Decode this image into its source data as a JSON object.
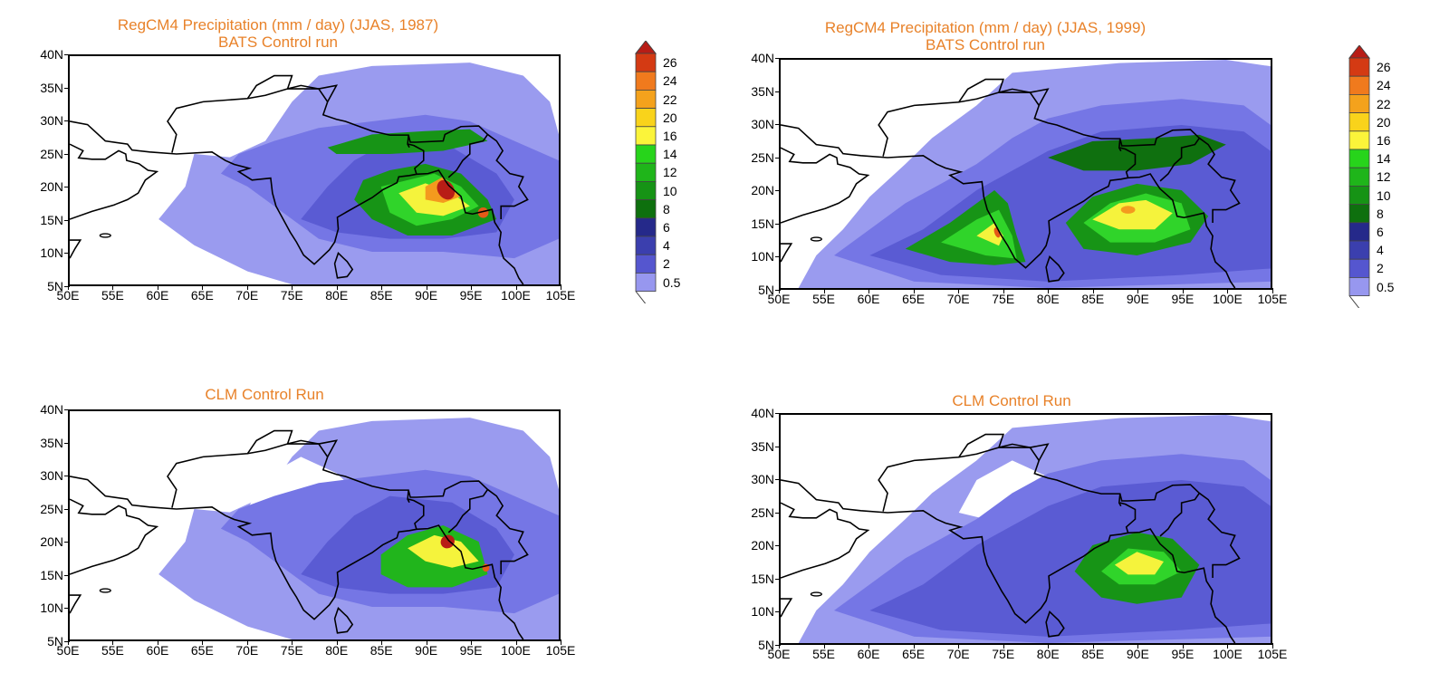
{
  "panels": [
    {
      "id": "p1",
      "title_lines": [
        "RegCM4 Precipitation (mm / day)  (JJAS, 1987)",
        "BATS Control run"
      ]
    },
    {
      "id": "p2",
      "title_lines": [
        "RegCM4 Precipitation (mm / day)  (JJAS, 1999)",
        "BATS Control run"
      ]
    },
    {
      "id": "p3",
      "title_lines": [
        "CLM Control Run"
      ]
    },
    {
      "id": "p4",
      "title_lines": [
        "CLM Control Run"
      ]
    }
  ],
  "axes": {
    "lat_labels": [
      "40N",
      "35N",
      "30N",
      "25N",
      "20N",
      "15N",
      "10N",
      "5N"
    ],
    "lon_labels": [
      "50E",
      "55E",
      "60E",
      "65E",
      "70E",
      "75E",
      "80E",
      "85E",
      "90E",
      "95E",
      "100E",
      "105E"
    ]
  },
  "colorbar": {
    "levels": [
      "26",
      "24",
      "22",
      "20",
      "16",
      "14",
      "12",
      "10",
      "8",
      "6",
      "4",
      "2",
      "0.5"
    ],
    "colors": [
      "#d43a13",
      "#f07a1d",
      "#f4a21c",
      "#f9d31b",
      "#fbf43a",
      "#27d41b",
      "#1fb51a",
      "#169315",
      "#0e700e",
      "#25298a",
      "#3b3fae",
      "#5556cf",
      "#7273e4",
      "#9797ef"
    ],
    "top_arrow_color": "#b81d16"
  },
  "chart_data": {
    "type": "heatmap",
    "title": "RegCM4 Precipitation (mm / day)",
    "units": "mm / day",
    "x_range": [
      "50E",
      "105E"
    ],
    "y_range": [
      "5N",
      "40N"
    ],
    "contour_levels": [
      0.5,
      2,
      4,
      6,
      8,
      10,
      12,
      14,
      16,
      20,
      22,
      24,
      26
    ]
  }
}
